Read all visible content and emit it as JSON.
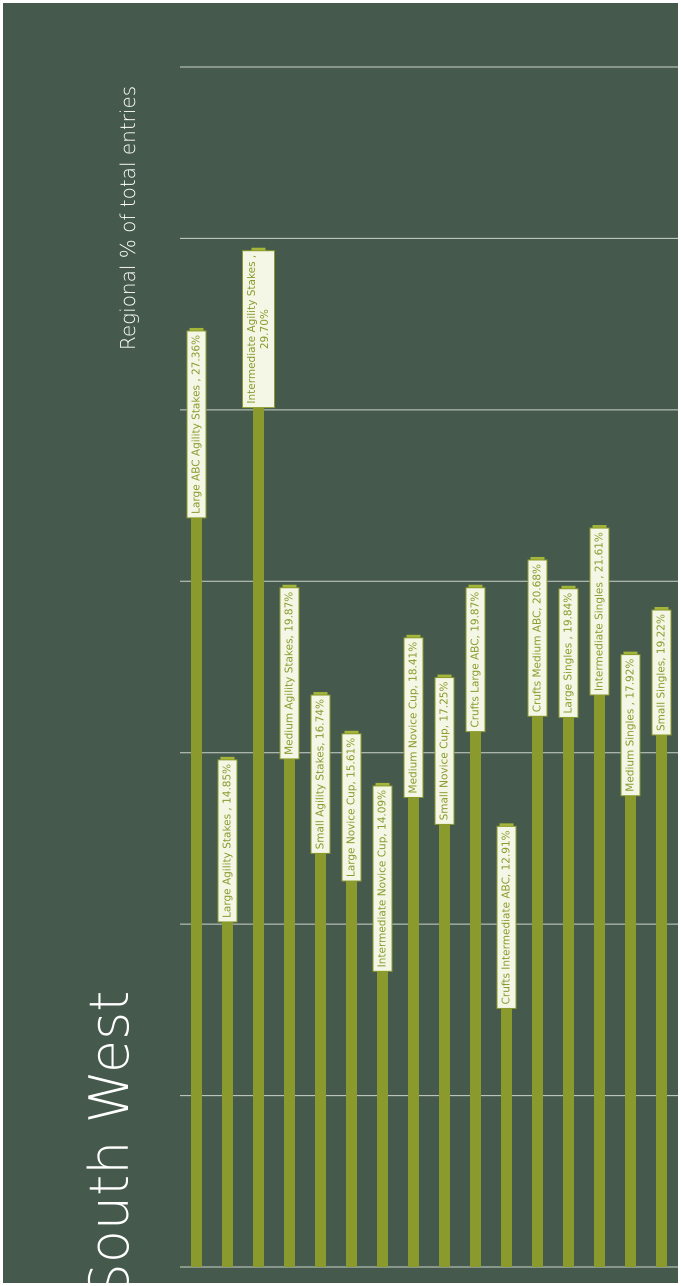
{
  "title": "South West",
  "colors": {
    "background": "#455a4c",
    "bar": "#8a9a2c",
    "bar_cap": "#a4b63a",
    "label_bg": "#f5f7e6",
    "label_text": "#8a9a2c",
    "grid": "#e3e8e4",
    "text": "#ffffff"
  },
  "chart_data": {
    "type": "bar",
    "orientation": "vertical bars, figure rotated 90° counter-clockwise",
    "title": "South West",
    "ylabel": "Regional % of total entries",
    "ylim": [
      0,
      35
    ],
    "grid_step": 5,
    "grid": true,
    "categories": [
      "Large ABC Agility Stakes",
      "Large Agility Stakes",
      "Intermediate Agility Stakes",
      "Medium Agility Stakes",
      "Small Agility Stakes",
      "Large Novice Cup",
      "Intermediate Novice Cup",
      "Medium Novice Cup",
      "Small Novice Cup",
      "Crufts Large ABC",
      "Crufts Intermediate ABC",
      "Crufts Medium ABC",
      "Large Singles",
      "Intermediate Singles",
      "Medium Singles",
      "Small Singles"
    ],
    "values": [
      27.36,
      14.85,
      29.7,
      19.87,
      16.74,
      15.61,
      14.09,
      18.41,
      17.25,
      19.87,
      12.91,
      20.68,
      19.84,
      21.61,
      17.92,
      19.22
    ],
    "data_labels": [
      [
        "Large ABC Agility Stakes , 27.36%"
      ],
      [
        "Large Agility Stakes , 14.85%"
      ],
      [
        "Intermediate Agility Stakes ,",
        "29.70%"
      ],
      [
        "Medium Agility Stakes, 19.87%"
      ],
      [
        "Small Agility Stakes, 16.74%"
      ],
      [
        "Large Novice Cup, 15.61%"
      ],
      [
        "Intermediate Novice Cup, 14.09%"
      ],
      [
        "Medium Novice Cup, 18.41%"
      ],
      [
        "Small Novice Cup, 17.25%"
      ],
      [
        "Crufts Large ABC, 19.87%"
      ],
      [
        "Crufts Intermediate ABC, 12.91%"
      ],
      [
        "Crufts Medium ABC, 20.68%"
      ],
      [
        "Large Singles , 19.84%"
      ],
      [
        "Intermediate Singles , 21.61%"
      ],
      [
        "Medium Singles , 17.92%"
      ],
      [
        "Small Singles, 19.22%"
      ]
    ]
  }
}
